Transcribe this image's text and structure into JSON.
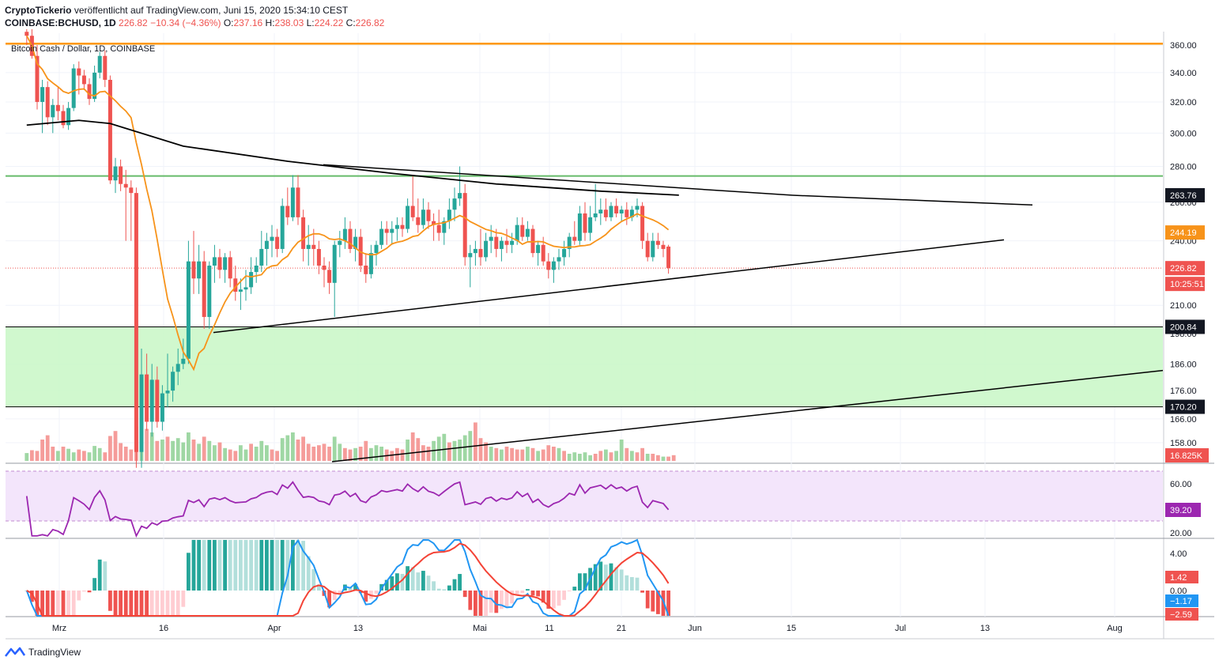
{
  "header": {
    "publisher": "CryptoTickerio",
    "published_text": "veröffentlicht auf TradingView.com, Juni 15, 2020 15:34:10 CEST",
    "symbol": "COINBASE:BCHUSD, 1D",
    "price": "226.82",
    "change": "−10.34 (−4.36%)",
    "o_label": "O:",
    "o": "237.16",
    "h_label": "H:",
    "h": "238.03",
    "l_label": "L:",
    "l": "224.22",
    "c_label": "C:",
    "c": "226.82"
  },
  "chart_title": "Bitcoin Cash / Dollar, 1D, COINBASE",
  "footer": {
    "brand": "TradingView"
  },
  "colors": {
    "up": "#26a69a",
    "down": "#ef5350",
    "ma50": "#f7931a",
    "ma200": "#000000",
    "resistance": "#ff9800",
    "zone": "#c8f7c5",
    "rsi": "#9c27b0",
    "macd": "#2196f3",
    "signal": "#f44336"
  },
  "chart_data": {
    "type": "candlestick",
    "price_axis": {
      "ticks": [
        "360.00",
        "340.00",
        "320.00",
        "300.00",
        "280.00",
        "260.00",
        "240.00",
        "210.00",
        "198.00",
        "186.00",
        "176.00",
        "166.00",
        "158.00"
      ],
      "scale": "log"
    },
    "x_axis": {
      "ticks": [
        "Mrz",
        "16",
        "Apr",
        "13",
        "Mai",
        "11",
        "21",
        "Jun",
        "15",
        "Jul",
        "13",
        "Aug"
      ]
    },
    "price_tags": [
      {
        "label": "263.76",
        "value": 263.76,
        "style": "dark"
      },
      {
        "label": "244.19",
        "value": 244.19,
        "style": "orange"
      },
      {
        "label": "226.82",
        "value": 226.82,
        "style": "red"
      },
      {
        "label": "10:25:51",
        "value": 221.5,
        "style": "red"
      },
      {
        "label": "200.84",
        "value": 200.84,
        "style": "dark"
      },
      {
        "label": "170.20",
        "value": 170.2,
        "style": "dark"
      },
      {
        "label": "16.825K",
        "value": 152,
        "style": "red"
      }
    ],
    "levels": {
      "resistance": 361.0,
      "green_line": 274.5,
      "zone_top": 200.84,
      "zone_bottom": 170.2,
      "current_price": 226.82
    },
    "candles": [
      [
        370.0,
        372.0,
        360.0,
        367.0
      ],
      [
        367.0,
        372.0,
        350.0,
        352.0
      ],
      [
        352.0,
        360.0,
        315.0,
        320.0
      ],
      [
        320.0,
        335.0,
        300.0,
        330.0
      ],
      [
        330.0,
        334.0,
        305.0,
        310.0
      ],
      [
        310.0,
        322.0,
        300.0,
        318.0
      ],
      [
        318.0,
        330.0,
        308.0,
        314.0
      ],
      [
        314.0,
        318.0,
        303.0,
        305.0
      ],
      [
        305.0,
        320.0,
        302.0,
        316.0
      ],
      [
        316.0,
        346.0,
        314.0,
        343.0
      ],
      [
        343.0,
        348.0,
        325.0,
        338.0
      ],
      [
        338.0,
        342.0,
        328.0,
        332.0
      ],
      [
        332.0,
        336.0,
        318.0,
        322.0
      ],
      [
        322.0,
        345.0,
        320.0,
        340.0
      ],
      [
        340.0,
        355.0,
        336.0,
        352.0
      ],
      [
        352.0,
        356.0,
        330.0,
        335.0
      ],
      [
        335.0,
        338.0,
        270.0,
        272.0
      ],
      [
        272.0,
        285.0,
        265.0,
        280.0
      ],
      [
        280.0,
        284.0,
        266.0,
        270.0
      ],
      [
        270.0,
        278.0,
        240.0,
        268.0
      ],
      [
        268.0,
        272.0,
        240.0,
        265.0
      ],
      [
        265.0,
        268.0,
        150.0,
        155.0
      ],
      [
        155.0,
        192.0,
        150.0,
        182.0
      ],
      [
        182.0,
        190.0,
        162.0,
        165.0
      ],
      [
        165.0,
        186.0,
        160.0,
        180.0
      ],
      [
        180.0,
        185.0,
        163.0,
        165.0
      ],
      [
        165.0,
        178.0,
        162.0,
        175.0
      ],
      [
        175.0,
        190.0,
        170.0,
        176.0
      ],
      [
        176.0,
        185.0,
        172.0,
        183.0
      ],
      [
        183.0,
        192.0,
        178.0,
        186.0
      ],
      [
        186.0,
        196.0,
        184.0,
        188.0
      ],
      [
        188.0,
        240.0,
        186.0,
        230.0
      ],
      [
        230.0,
        245.0,
        215.0,
        222.0
      ],
      [
        222.0,
        238.0,
        215.0,
        230.0
      ],
      [
        230.0,
        235.0,
        200.0,
        205.0
      ],
      [
        205.0,
        230.0,
        200.0,
        228.0
      ],
      [
        228.0,
        238.0,
        220.0,
        232.0
      ],
      [
        232.0,
        236.0,
        222.0,
        226.0
      ],
      [
        226.0,
        234.0,
        220.0,
        232.0
      ],
      [
        232.0,
        235.0,
        218.0,
        222.0
      ],
      [
        222.0,
        228.0,
        212.0,
        216.0
      ],
      [
        216.0,
        222.0,
        208.0,
        217.0
      ],
      [
        217.0,
        226.0,
        212.0,
        218.0
      ],
      [
        218.0,
        232.0,
        215.0,
        225.0
      ],
      [
        225.0,
        232.0,
        220.0,
        228.0
      ],
      [
        228.0,
        245.0,
        225.0,
        236.0
      ],
      [
        236.0,
        244.0,
        228.0,
        240.0
      ],
      [
        240.0,
        248.0,
        232.0,
        242.0
      ],
      [
        242.0,
        246.0,
        232.0,
        236.0
      ],
      [
        236.0,
        262.0,
        234.0,
        258.0
      ],
      [
        258.0,
        268.0,
        248.0,
        252.0
      ],
      [
        252.0,
        275.0,
        250.0,
        268.0
      ],
      [
        268.0,
        275.0,
        248.0,
        252.0
      ],
      [
        252.0,
        256.0,
        230.0,
        236.0
      ],
      [
        236.0,
        248.0,
        228.0,
        238.0
      ],
      [
        238.0,
        246.0,
        228.0,
        236.0
      ],
      [
        236.0,
        240.0,
        224.0,
        228.0
      ],
      [
        228.0,
        232.0,
        218.0,
        226.0
      ],
      [
        226.0,
        230.0,
        215.0,
        220.0
      ],
      [
        220.0,
        240.0,
        205.0,
        238.0
      ],
      [
        238.0,
        245.0,
        232.0,
        240.0
      ],
      [
        240.0,
        252.0,
        236.0,
        246.0
      ],
      [
        246.0,
        250.0,
        234.0,
        236.0
      ],
      [
        236.0,
        246.0,
        230.0,
        242.0
      ],
      [
        242.0,
        246.0,
        225.0,
        228.0
      ],
      [
        228.0,
        234.0,
        220.0,
        224.0
      ],
      [
        224.0,
        238.0,
        222.0,
        234.0
      ],
      [
        234.0,
        240.0,
        228.0,
        238.0
      ],
      [
        238.0,
        250.0,
        236.0,
        246.0
      ],
      [
        246.0,
        250.0,
        238.0,
        244.0
      ],
      [
        244.0,
        250.0,
        238.0,
        246.0
      ],
      [
        246.0,
        252.0,
        240.0,
        248.0
      ],
      [
        248.0,
        252.0,
        242.0,
        246.0
      ],
      [
        246.0,
        262.0,
        244.0,
        258.0
      ],
      [
        258.0,
        275.0,
        250.0,
        252.0
      ],
      [
        252.0,
        262.0,
        244.0,
        248.0
      ],
      [
        248.0,
        262.0,
        246.0,
        256.0
      ],
      [
        256.0,
        260.0,
        246.0,
        250.0
      ],
      [
        250.0,
        254.0,
        240.0,
        248.0
      ],
      [
        248.0,
        256.0,
        240.0,
        244.0
      ],
      [
        244.0,
        252.0,
        238.0,
        250.0
      ],
      [
        250.0,
        262.0,
        246.0,
        256.0
      ],
      [
        256.0,
        268.0,
        250.0,
        262.0
      ],
      [
        262.0,
        280.0,
        258.0,
        265.0
      ],
      [
        265.0,
        270.0,
        228.0,
        232.0
      ],
      [
        232.0,
        238.0,
        218.0,
        234.0
      ],
      [
        234.0,
        240.0,
        228.0,
        236.0
      ],
      [
        236.0,
        246.0,
        228.0,
        232.0
      ],
      [
        232.0,
        244.0,
        230.0,
        240.0
      ],
      [
        240.0,
        248.0,
        234.0,
        242.0
      ],
      [
        242.0,
        246.0,
        232.0,
        236.0
      ],
      [
        236.0,
        242.0,
        230.0,
        240.0
      ],
      [
        240.0,
        246.0,
        234.0,
        238.0
      ],
      [
        238.0,
        244.0,
        234.0,
        240.0
      ],
      [
        240.0,
        252.0,
        238.0,
        248.0
      ],
      [
        248.0,
        252.0,
        240.0,
        242.0
      ],
      [
        242.0,
        250.0,
        240.0,
        246.0
      ],
      [
        246.0,
        248.0,
        232.0,
        234.0
      ],
      [
        234.0,
        240.0,
        228.0,
        238.0
      ],
      [
        238.0,
        242.0,
        228.0,
        230.0
      ],
      [
        230.0,
        234.0,
        222.0,
        226.0
      ],
      [
        226.0,
        232.0,
        220.0,
        230.0
      ],
      [
        230.0,
        236.0,
        226.0,
        232.0
      ],
      [
        232.0,
        240.0,
        228.0,
        236.0
      ],
      [
        236.0,
        244.0,
        232.0,
        242.0
      ],
      [
        242.0,
        250.0,
        238.0,
        240.0
      ],
      [
        240.0,
        258.0,
        238.0,
        254.0
      ],
      [
        254.0,
        260.0,
        240.0,
        244.0
      ],
      [
        244.0,
        258.0,
        240.0,
        252.0
      ],
      [
        252.0,
        270.0,
        250.0,
        254.0
      ],
      [
        254.0,
        262.0,
        248.0,
        256.0
      ],
      [
        256.0,
        262.0,
        250.0,
        252.0
      ],
      [
        252.0,
        260.0,
        250.0,
        258.0
      ],
      [
        258.0,
        262.0,
        252.0,
        254.0
      ],
      [
        254.0,
        258.0,
        250.0,
        256.0
      ],
      [
        256.0,
        260.0,
        248.0,
        252.0
      ],
      [
        252.0,
        258.0,
        250.0,
        256.0
      ],
      [
        256.0,
        262.0,
        252.0,
        258.0
      ],
      [
        258.0,
        260.0,
        236.0,
        240.0
      ],
      [
        240.0,
        244.0,
        230.0,
        232.0
      ],
      [
        232.0,
        244.0,
        230.0,
        240.0
      ],
      [
        240.0,
        244.0,
        236.0,
        238.0
      ],
      [
        238.0,
        240.0,
        232.0,
        236.0
      ],
      [
        237.16,
        238.03,
        224.22,
        226.82
      ]
    ],
    "volume": [
      [
        11,
        0
      ],
      [
        15,
        1
      ],
      [
        14,
        1
      ],
      [
        30,
        1
      ],
      [
        36,
        1
      ],
      [
        20,
        1
      ],
      [
        14,
        0
      ],
      [
        20,
        1
      ],
      [
        17,
        0
      ],
      [
        12,
        0
      ],
      [
        16,
        1
      ],
      [
        14,
        1
      ],
      [
        12,
        0
      ],
      [
        21,
        0
      ],
      [
        18,
        0
      ],
      [
        12,
        1
      ],
      [
        35,
        1
      ],
      [
        42,
        1
      ],
      [
        25,
        1
      ],
      [
        20,
        1
      ],
      [
        16,
        1
      ],
      [
        48,
        1
      ],
      [
        65,
        0
      ],
      [
        45,
        1
      ],
      [
        40,
        0
      ],
      [
        28,
        1
      ],
      [
        30,
        0
      ],
      [
        34,
        1
      ],
      [
        28,
        0
      ],
      [
        32,
        0
      ],
      [
        26,
        0
      ],
      [
        40,
        0
      ],
      [
        30,
        1
      ],
      [
        24,
        0
      ],
      [
        34,
        1
      ],
      [
        28,
        0
      ],
      [
        22,
        0
      ],
      [
        26,
        1
      ],
      [
        18,
        0
      ],
      [
        16,
        1
      ],
      [
        14,
        1
      ],
      [
        22,
        0
      ],
      [
        16,
        0
      ],
      [
        24,
        1
      ],
      [
        20,
        0
      ],
      [
        28,
        0
      ],
      [
        22,
        0
      ],
      [
        16,
        1
      ],
      [
        14,
        1
      ],
      [
        32,
        0
      ],
      [
        36,
        0
      ],
      [
        40,
        0
      ],
      [
        30,
        1
      ],
      [
        34,
        1
      ],
      [
        24,
        1
      ],
      [
        20,
        1
      ],
      [
        22,
        1
      ],
      [
        24,
        1
      ],
      [
        20,
        1
      ],
      [
        34,
        0
      ],
      [
        24,
        0
      ],
      [
        18,
        1
      ],
      [
        16,
        1
      ],
      [
        18,
        0
      ],
      [
        20,
        1
      ],
      [
        28,
        1
      ],
      [
        18,
        0
      ],
      [
        22,
        0
      ],
      [
        20,
        0
      ],
      [
        16,
        1
      ],
      [
        14,
        1
      ],
      [
        18,
        1
      ],
      [
        16,
        1
      ],
      [
        30,
        0
      ],
      [
        40,
        1
      ],
      [
        32,
        1
      ],
      [
        22,
        1
      ],
      [
        20,
        1
      ],
      [
        28,
        0
      ],
      [
        34,
        0
      ],
      [
        38,
        0
      ],
      [
        26,
        1
      ],
      [
        28,
        0
      ],
      [
        30,
        0
      ],
      [
        36,
        0
      ],
      [
        42,
        0
      ],
      [
        54,
        1
      ],
      [
        32,
        1
      ],
      [
        26,
        1
      ],
      [
        20,
        0
      ],
      [
        18,
        1
      ],
      [
        16,
        0
      ],
      [
        20,
        1
      ],
      [
        18,
        1
      ],
      [
        16,
        1
      ],
      [
        16,
        1
      ],
      [
        20,
        0
      ],
      [
        18,
        1
      ],
      [
        14,
        0
      ],
      [
        16,
        1
      ],
      [
        22,
        1
      ],
      [
        20,
        1
      ],
      [
        18,
        0
      ],
      [
        14,
        1
      ],
      [
        10,
        0
      ],
      [
        12,
        0
      ],
      [
        10,
        0
      ],
      [
        12,
        0
      ],
      [
        8,
        0
      ],
      [
        10,
        1
      ],
      [
        14,
        1
      ],
      [
        16,
        0
      ],
      [
        12,
        1
      ],
      [
        14,
        0
      ],
      [
        30,
        0
      ],
      [
        18,
        1
      ],
      [
        14,
        0
      ],
      [
        12,
        1
      ],
      [
        18,
        1
      ],
      [
        10,
        0
      ],
      [
        10,
        1
      ],
      [
        8,
        1
      ],
      [
        6,
        0
      ],
      [
        6,
        1
      ],
      [
        8,
        1
      ]
    ],
    "rsi": {
      "value_label": "39.20",
      "ticks": [
        "60.00",
        "20.00"
      ],
      "overbought": 70,
      "oversold": 30
    },
    "macd": {
      "ticks": [
        "4.00",
        "0.00"
      ],
      "tags": [
        {
          "label": "1.42",
          "value": 1.42,
          "style": "red"
        },
        {
          "label": "−1.17",
          "value": -1.17,
          "style": "blue"
        },
        {
          "label": "−2.59",
          "value": -2.59,
          "style": "red"
        }
      ]
    }
  }
}
